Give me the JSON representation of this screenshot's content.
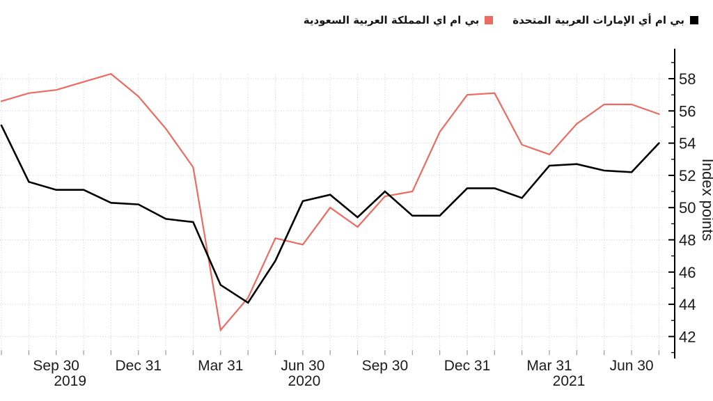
{
  "chart_data": {
    "type": "line",
    "ylabel": "Index points",
    "x": [
      "Jul 2019",
      "Aug 2019",
      "Sep 2019",
      "Oct 2019",
      "Nov 2019",
      "Dec 2019",
      "Jan 2020",
      "Feb 2020",
      "Mar 2020",
      "Apr 2020",
      "May 2020",
      "Jun 2020",
      "Jul 2020",
      "Aug 2020",
      "Sep 2020",
      "Oct 2020",
      "Nov 2020",
      "Dec 2020",
      "Jan 2021",
      "Feb 2021",
      "Mar 2021",
      "Apr 2021",
      "May 2021",
      "Jun 2021",
      "Jul 2021"
    ],
    "series": [
      {
        "id": "uae",
        "name": "بي ام أي الإمارات العربية المتحدة",
        "color": "#000000",
        "width": 2.6,
        "values": [
          55.1,
          51.6,
          51.1,
          51.1,
          50.3,
          50.2,
          49.3,
          49.1,
          45.2,
          44.1,
          46.7,
          50.4,
          50.8,
          49.4,
          51.0,
          49.5,
          49.5,
          51.2,
          51.2,
          50.6,
          52.6,
          52.7,
          52.3,
          52.2,
          54.0
        ]
      },
      {
        "id": "saudi",
        "name": "بي ام اي المملكة العربية السعودية",
        "color": "#ee6a60",
        "width": 2.2,
        "values": [
          56.6,
          57.1,
          57.3,
          57.8,
          58.3,
          56.9,
          54.9,
          52.5,
          42.4,
          44.4,
          48.1,
          47.7,
          50.0,
          48.8,
          50.7,
          51.0,
          54.7,
          57.0,
          57.1,
          53.9,
          53.3,
          55.2,
          56.4,
          56.4,
          55.8
        ]
      }
    ],
    "y_axis": {
      "side": "right",
      "major_ticks": [
        42,
        44,
        46,
        48,
        50,
        52,
        54,
        56,
        58
      ],
      "minor_step": 1,
      "range": [
        40.6,
        59.9
      ]
    },
    "x_ticks": [
      {
        "label": "Sep 30",
        "year": "2019",
        "index": 2
      },
      {
        "label": "Dec 31",
        "index": 5
      },
      {
        "label": "Mar 31",
        "index": 8
      },
      {
        "label": "Jun 30",
        "year": "2020",
        "index": 11
      },
      {
        "label": "Sep 30",
        "index": 14
      },
      {
        "label": "Dec 31",
        "index": 17
      },
      {
        "label": "Mar 31",
        "year": "2021",
        "index": 20
      },
      {
        "label": "Jun 30",
        "index": 23
      }
    ],
    "grid": {
      "style": "dotted",
      "color": "#cbcbcb"
    },
    "legend_position": "top-right"
  }
}
